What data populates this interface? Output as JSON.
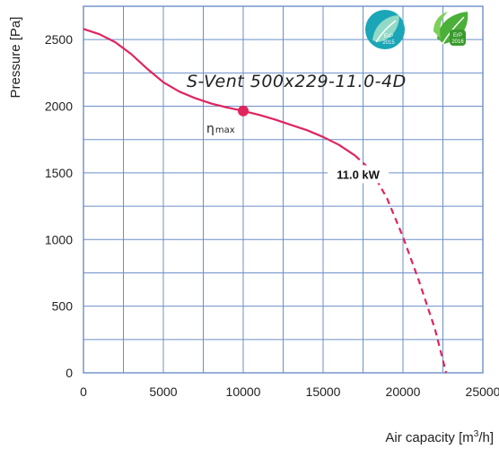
{
  "chart_data": {
    "type": "line",
    "title": "",
    "model": "S-Vent 500x229-11.0-4D",
    "xlabel": "Air capacity [m³/h]",
    "xlabel_base": "Air capacity [m",
    "xlabel_sup": "3",
    "xlabel_tail": "/h]",
    "ylabel": "Pressure [Pa]",
    "xlim": [
      0,
      25000
    ],
    "ylim": [
      0,
      2750
    ],
    "x_ticks": [
      0,
      5000,
      10000,
      15000,
      20000,
      25000
    ],
    "y_ticks": [
      0,
      500,
      1000,
      1500,
      2000,
      2500
    ],
    "grid": true,
    "x_grid_step": 2500,
    "y_grid_step": 250,
    "series": [
      {
        "name": "",
        "color": "#e0245e",
        "solid_points": [
          [
            0,
            2580
          ],
          [
            1000,
            2540
          ],
          [
            2000,
            2480
          ],
          [
            3000,
            2390
          ],
          [
            4000,
            2280
          ],
          [
            5000,
            2180
          ],
          [
            6000,
            2110
          ],
          [
            7000,
            2060
          ],
          [
            8000,
            2020
          ],
          [
            9000,
            1990
          ],
          [
            10000,
            1965
          ],
          [
            11000,
            1935
          ],
          [
            12000,
            1900
          ],
          [
            13000,
            1860
          ],
          [
            14000,
            1820
          ],
          [
            15000,
            1770
          ],
          [
            16000,
            1710
          ],
          [
            17000,
            1630
          ]
        ],
        "dashed_points": [
          [
            17000,
            1630
          ],
          [
            18000,
            1520
          ],
          [
            19000,
            1310
          ],
          [
            20000,
            1020
          ],
          [
            21000,
            690
          ],
          [
            22000,
            330
          ],
          [
            22700,
            0
          ]
        ]
      }
    ],
    "annotations": {
      "power": "11.0 kW",
      "power_at": [
        18600,
        1490
      ],
      "eta_max_label": "η",
      "eta_max_sub": "max",
      "eta_max_point": [
        10000,
        1965
      ]
    },
    "badges": [
      {
        "icon": "erp-2015-leaf-icon",
        "text": "ErP",
        "year": "2015",
        "color": "#1aa6b7"
      },
      {
        "icon": "erp-2016-leaf-icon",
        "text": "ErP",
        "year": "2016",
        "color": "#4caf3a"
      }
    ]
  }
}
